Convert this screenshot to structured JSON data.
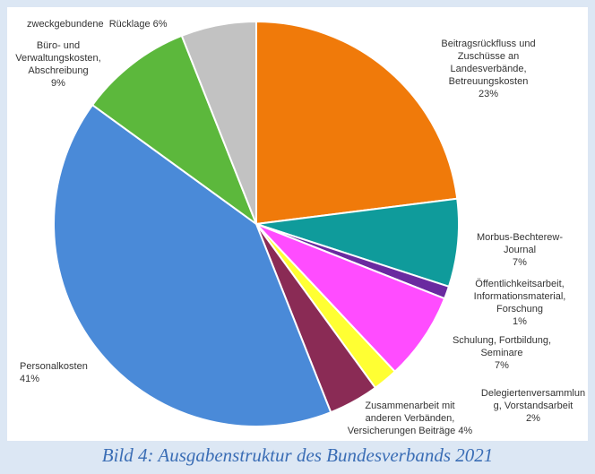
{
  "chart_data": {
    "type": "pie",
    "caption": "Bild 4: Ausgabenstruktur des Bundesverbands 2021",
    "categories": [
      "Beitragsrückfluss und\nZuschüsse an\nLandesverbände,\nBetreuungskosten",
      "Morbus-Bechterew-\nJournal",
      "Öffentlichkeitsarbeit,\nInformationsmaterial,\nForschung",
      "Schulung, Fortbildung,\nSeminare",
      "Delegiertenversammlun\ng, Vorstandsarbeit",
      "Zusammenarbeit mit\nanderen Verbänden,\nVersicherungen Beiträge",
      "Personalkosten",
      "Büro- und\nVerwaltungskosten,\nAbschreibung",
      "zweckgebundene  Rücklage"
    ],
    "values": [
      23,
      7,
      1,
      7,
      2,
      4,
      41,
      9,
      6
    ],
    "value_labels": [
      "23%",
      "7%",
      "1%",
      "7%",
      "2%",
      "4%",
      "41%",
      "9%",
      "6%"
    ],
    "colors": [
      "#f07a0a",
      "#0f9b9b",
      "#6a2aa0",
      "#ff4cff",
      "#ffff33",
      "#8a2b55",
      "#4a8ad8",
      "#5cb83c",
      "#c2c2c2"
    ]
  }
}
